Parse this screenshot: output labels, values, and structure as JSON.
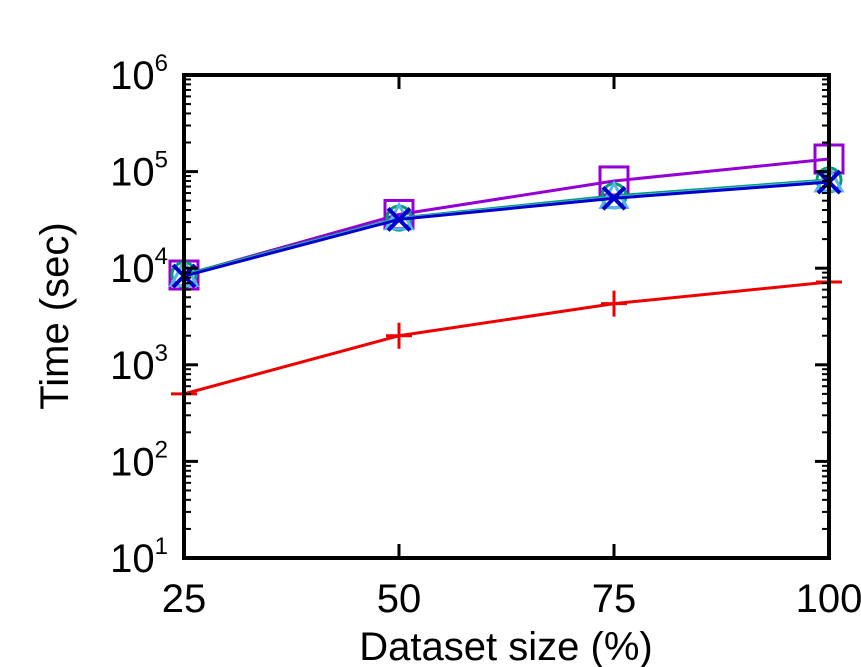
{
  "chart_data": {
    "type": "line",
    "title": "",
    "xlabel": "Dataset size (%)",
    "ylabel": "Time (sec)",
    "x": [
      25,
      50,
      75,
      100
    ],
    "xticks": [
      "25",
      "50",
      "75",
      "100"
    ],
    "xlim": [
      25,
      100
    ],
    "y_scale": "log",
    "ylim": [
      10,
      1000000
    ],
    "yticks": [
      {
        "value": 10,
        "base": "10",
        "exp": "1"
      },
      {
        "value": 100,
        "base": "10",
        "exp": "2"
      },
      {
        "value": 1000,
        "base": "10",
        "exp": "3"
      },
      {
        "value": 10000,
        "base": "10",
        "exp": "4"
      },
      {
        "value": 100000,
        "base": "10",
        "exp": "5"
      },
      {
        "value": 1000000,
        "base": "10",
        "exp": "6"
      }
    ],
    "grid": false,
    "legend": "none",
    "series": [
      {
        "color": "#9400d3",
        "marker": "square",
        "values": [
          8500,
          36000,
          80000,
          135000
        ]
      },
      {
        "color": "#009e73",
        "marker": "circle",
        "values": [
          8600,
          33000,
          56000,
          82000
        ]
      },
      {
        "color": "#56b4e9",
        "marker": "triangle",
        "values": [
          8400,
          32500,
          54000,
          80000
        ]
      },
      {
        "color": "#0000cc",
        "marker": "x",
        "values": [
          8300,
          32000,
          53000,
          78000
        ]
      },
      {
        "color": "#ee0000",
        "marker": "plus",
        "values": [
          500,
          2000,
          4300,
          7200
        ]
      }
    ]
  }
}
